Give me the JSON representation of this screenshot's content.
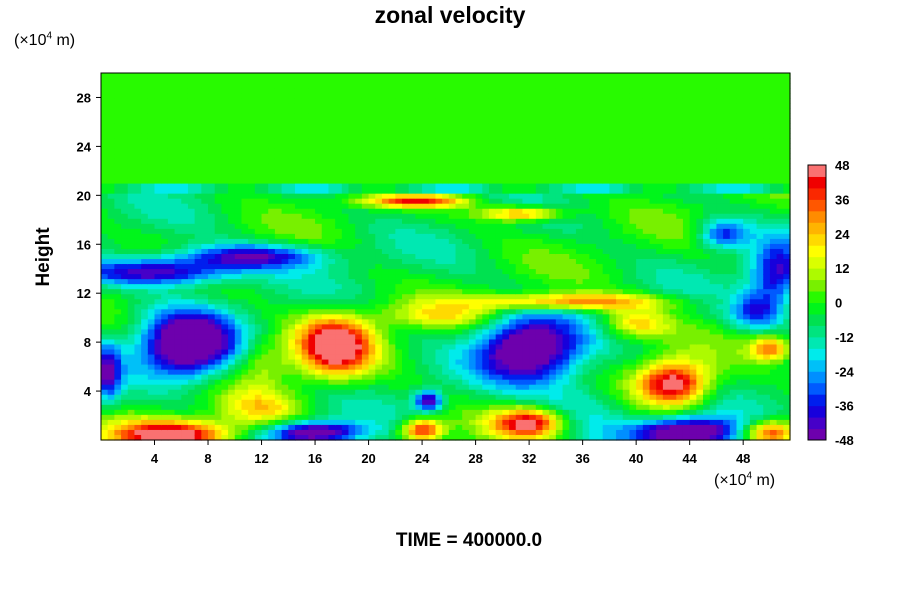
{
  "chart_data": {
    "type": "heatmap",
    "title": "zonal velocity",
    "ylabel": "Height",
    "xlabel": "",
    "x_unit_prefix": "(×10",
    "x_unit_exp": "4",
    "x_unit_suffix": " m)",
    "y_unit_prefix": "(×10",
    "y_unit_exp": "4",
    "y_unit_suffix": " m)",
    "footer": "TIME = 400000.0",
    "xlim": [
      0,
      51.5
    ],
    "ylim": [
      0,
      30
    ],
    "x_ticks": [
      4,
      8,
      12,
      16,
      20,
      24,
      28,
      32,
      36,
      40,
      44,
      48
    ],
    "y_ticks": [
      4,
      8,
      12,
      16,
      20,
      24,
      28
    ],
    "colorbar": {
      "ticks": [
        48,
        36,
        24,
        12,
        0,
        -12,
        -24,
        -36,
        -48
      ],
      "range": [
        -48,
        48
      ],
      "levels": 24
    },
    "field_features": [
      {
        "x": 6.5,
        "y": 7.7,
        "sx": 3.4,
        "sy": 2.6,
        "v": -60
      },
      {
        "x": 32.0,
        "y": 7.4,
        "sx": 3.6,
        "sy": 2.6,
        "v": -56
      },
      {
        "x": 4.5,
        "y": 13.7,
        "sx": 5.5,
        "sy": 1.1,
        "v": -44
      },
      {
        "x": 11.0,
        "y": 15.0,
        "sx": 5.5,
        "sy": 1.0,
        "v": -38
      },
      {
        "x": 50.5,
        "y": 13.5,
        "sx": 2.0,
        "sy": 2.5,
        "v": -38
      },
      {
        "x": 46.5,
        "y": 16.8,
        "sx": 1.8,
        "sy": 1.2,
        "v": -30
      },
      {
        "x": 49.0,
        "y": 10.5,
        "sx": 2.0,
        "sy": 1.5,
        "v": -28
      },
      {
        "x": 44.0,
        "y": 0.6,
        "sx": 4.0,
        "sy": 1.2,
        "v": -56
      },
      {
        "x": 16.0,
        "y": 0.6,
        "sx": 3.5,
        "sy": 0.9,
        "v": -50
      },
      {
        "x": 24.5,
        "y": 3.2,
        "sx": 1.0,
        "sy": 0.8,
        "v": -44
      },
      {
        "x": 36.0,
        "y": 3.0,
        "sx": 3.5,
        "sy": 2.5,
        "v": -14
      },
      {
        "x": 0.5,
        "y": 5.5,
        "sx": 1.0,
        "sy": 2.5,
        "v": -32
      },
      {
        "x": 17.5,
        "y": 7.7,
        "sx": 2.8,
        "sy": 2.4,
        "v": 58
      },
      {
        "x": 42.8,
        "y": 4.6,
        "sx": 2.6,
        "sy": 1.8,
        "v": 56
      },
      {
        "x": 5.5,
        "y": 0.4,
        "sx": 4.5,
        "sy": 1.2,
        "v": 56
      },
      {
        "x": 32.0,
        "y": 1.4,
        "sx": 2.6,
        "sy": 1.2,
        "v": 50
      },
      {
        "x": 24.0,
        "y": 0.8,
        "sx": 1.5,
        "sy": 0.9,
        "v": 46
      },
      {
        "x": 50.0,
        "y": 0.6,
        "sx": 2.0,
        "sy": 1.0,
        "v": 46
      },
      {
        "x": 35.0,
        "y": 11.3,
        "sx": 7.0,
        "sy": 0.7,
        "v": 38
      },
      {
        "x": 40.0,
        "y": 9.5,
        "sx": 2.5,
        "sy": 1.2,
        "v": 26
      },
      {
        "x": 23.5,
        "y": 19.5,
        "sx": 4.0,
        "sy": 0.5,
        "v": 38
      },
      {
        "x": 31.5,
        "y": 18.5,
        "sx": 3.0,
        "sy": 0.6,
        "v": 38
      },
      {
        "x": 12.0,
        "y": 2.5,
        "sx": 3.0,
        "sy": 1.5,
        "v": 22
      },
      {
        "x": 50.0,
        "y": 7.5,
        "sx": 1.5,
        "sy": 1.0,
        "v": 36
      },
      {
        "x": 25.0,
        "y": 10.2,
        "sx": 4.0,
        "sy": 1.0,
        "v": 18
      },
      {
        "x": 12.0,
        "y": 6.5,
        "sx": 2.0,
        "sy": 2.0,
        "v": 14
      }
    ]
  }
}
